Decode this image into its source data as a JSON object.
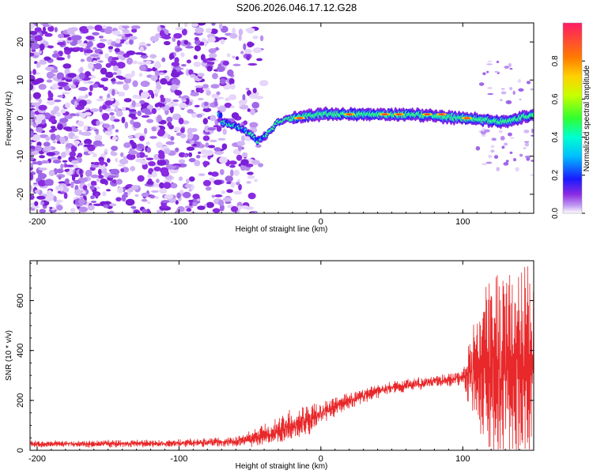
{
  "title": "S206.2026.046.17.12.G28",
  "chart_data": [
    {
      "type": "heatmap",
      "xlabel": "Height of straight line (km)",
      "ylabel": "Frequency (Hz)",
      "xlim": [
        -205,
        150
      ],
      "ylim": [
        -25,
        25
      ],
      "xticks": [
        -200,
        -100,
        0,
        100
      ],
      "yticks": [
        -20,
        -10,
        0,
        10,
        20
      ],
      "colorbar": {
        "label": "Normalized spectral amplitude",
        "range": [
          0,
          1
        ],
        "ticks": [
          "0.0",
          "0.2",
          "0.4",
          "0.6",
          "0.8"
        ]
      },
      "ridge": [
        {
          "x": -70,
          "y": -1
        },
        {
          "x": -60,
          "y": -2
        },
        {
          "x": -50,
          "y": -4
        },
        {
          "x": -45,
          "y": -6
        },
        {
          "x": -40,
          "y": -5
        },
        {
          "x": -35,
          "y": -3
        },
        {
          "x": -30,
          "y": -1
        },
        {
          "x": -20,
          "y": 0
        },
        {
          "x": 0,
          "y": 1
        },
        {
          "x": 30,
          "y": 1
        },
        {
          "x": 60,
          "y": 1
        },
        {
          "x": 100,
          "y": 0
        },
        {
          "x": 130,
          "y": -1
        },
        {
          "x": 150,
          "y": 1
        }
      ]
    },
    {
      "type": "line",
      "xlabel": "Height of straight line (km)",
      "ylabel": "SNR (10 * v/v)",
      "xlim": [
        -205,
        150
      ],
      "ylim": [
        0,
        760
      ],
      "xticks": [
        -200,
        -100,
        0,
        100
      ],
      "yticks": [
        0,
        200,
        400,
        600
      ],
      "series": [
        {
          "name": "SNR",
          "color": "#e8282a",
          "envelope": [
            {
              "x": -205,
              "mean": 25,
              "spread": 20
            },
            {
              "x": -100,
              "mean": 28,
              "spread": 22
            },
            {
              "x": -60,
              "mean": 35,
              "spread": 30
            },
            {
              "x": -40,
              "mean": 60,
              "spread": 60
            },
            {
              "x": -25,
              "mean": 90,
              "spread": 90
            },
            {
              "x": -10,
              "mean": 120,
              "spread": 90
            },
            {
              "x": 0,
              "mean": 150,
              "spread": 70
            },
            {
              "x": 20,
              "mean": 200,
              "spread": 50
            },
            {
              "x": 40,
              "mean": 240,
              "spread": 40
            },
            {
              "x": 60,
              "mean": 260,
              "spread": 35
            },
            {
              "x": 80,
              "mean": 275,
              "spread": 35
            },
            {
              "x": 100,
              "mean": 290,
              "spread": 40
            },
            {
              "x": 105,
              "mean": 300,
              "spread": 140
            },
            {
              "x": 115,
              "mean": 320,
              "spread": 300
            },
            {
              "x": 130,
              "mean": 330,
              "spread": 400
            },
            {
              "x": 150,
              "mean": 330,
              "spread": 420
            }
          ]
        }
      ]
    }
  ]
}
